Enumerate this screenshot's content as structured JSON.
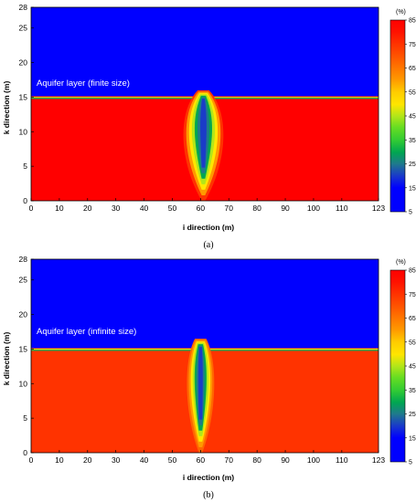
{
  "chart_data": [
    {
      "type": "heatmap",
      "caption": "(a)",
      "annotation": "Aquifer layer (finite size)",
      "xlabel": "i direction (m)",
      "ylabel": "k direction (m)",
      "xlim": [
        0,
        123
      ],
      "ylim": [
        0,
        28
      ],
      "x_ticks": [
        "0",
        "10",
        "20",
        "30",
        "40",
        "50",
        "60",
        "70",
        "80",
        "90",
        "100",
        "110",
        "123"
      ],
      "y_ticks": [
        "0",
        "5",
        "10",
        "15",
        "20",
        "25",
        "28"
      ],
      "colorbar": {
        "unit": "(%)",
        "ticks": [
          "85",
          "75",
          "65",
          "55",
          "45",
          "35",
          "25",
          "15",
          "5"
        ],
        "range": [
          5,
          85
        ]
      },
      "layer_interface_k": 15,
      "upper_value": 5,
      "lower_value": 85,
      "plume_center_i": 61,
      "plume_top_k": 16,
      "plume_halfwidth_top": 2,
      "plume_halfwidth_max": 9,
      "plume_min_value": 15
    },
    {
      "type": "heatmap",
      "caption": "(b)",
      "annotation": "Aquifer layer (infinite size)",
      "xlabel": "i direction (m)",
      "ylabel": "k direction (m)",
      "xlim": [
        0,
        123
      ],
      "ylim": [
        0,
        28
      ],
      "x_ticks": [
        "0",
        "10",
        "20",
        "30",
        "40",
        "50",
        "60",
        "70",
        "80",
        "90",
        "100",
        "110",
        "123"
      ],
      "y_ticks": [
        "0",
        "5",
        "10",
        "15",
        "20",
        "25",
        "28"
      ],
      "colorbar": {
        "unit": "(%)",
        "ticks": [
          "85",
          "75",
          "65",
          "55",
          "45",
          "35",
          "25",
          "15",
          "5"
        ],
        "range": [
          5,
          85
        ]
      },
      "layer_interface_k": 15,
      "upper_value": 5,
      "lower_value": 80,
      "plume_center_i": 60,
      "plume_top_k": 16.5,
      "plume_halfwidth_top": 2,
      "plume_halfwidth_max": 6,
      "plume_min_value": 15
    }
  ],
  "colors": {
    "scale": [
      "#0000ff",
      "#1a3cc8",
      "#1f7a8c",
      "#00a651",
      "#33cc33",
      "#b3e619",
      "#ffe600",
      "#ffcc00",
      "#ff9900",
      "#ff6600",
      "#ff3300",
      "#ff0000"
    ]
  }
}
